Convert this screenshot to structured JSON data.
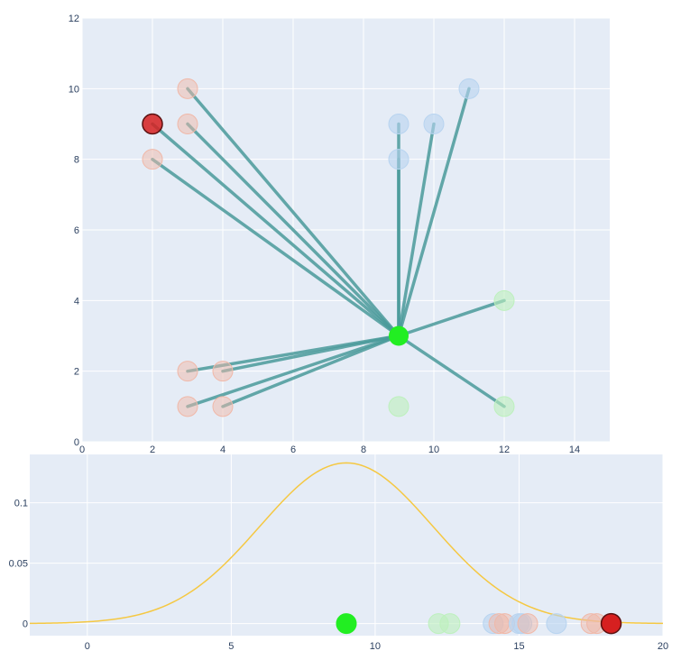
{
  "chart_data": [
    {
      "type": "scatter",
      "title": "",
      "xlabel": "",
      "ylabel": "",
      "xlim": [
        0,
        15
      ],
      "ylim": [
        0,
        12
      ],
      "xticks": [
        "0",
        "2",
        "4",
        "6",
        "8",
        "10",
        "12",
        "14"
      ],
      "yticks": [
        "0",
        "2",
        "4",
        "6",
        "8",
        "10",
        "12"
      ],
      "grid": true,
      "background": "#e5ecf6",
      "line_color": "#4a9a9a",
      "center": {
        "x": 9,
        "y": 3,
        "color": "#22ee22"
      },
      "points": [
        {
          "x": 2,
          "y": 9,
          "color": "#d62020",
          "opacity": 0.85,
          "connected": true
        },
        {
          "x": 2,
          "y": 8,
          "color": "#f0b8a8",
          "opacity": 0.5,
          "connected": true
        },
        {
          "x": 3,
          "y": 10,
          "color": "#f0b8a8",
          "opacity": 0.5,
          "connected": true
        },
        {
          "x": 3,
          "y": 9,
          "color": "#f0b8a8",
          "opacity": 0.5,
          "connected": true
        },
        {
          "x": 3,
          "y": 2,
          "color": "#f0b8a8",
          "opacity": 0.5,
          "connected": true
        },
        {
          "x": 4,
          "y": 2,
          "color": "#f0b8a8",
          "opacity": 0.5,
          "connected": true
        },
        {
          "x": 3,
          "y": 1,
          "color": "#f0b8a8",
          "opacity": 0.5,
          "connected": true
        },
        {
          "x": 4,
          "y": 1,
          "color": "#f0b8a8",
          "opacity": 0.5,
          "connected": true
        },
        {
          "x": 9,
          "y": 9,
          "color": "#b8d4f0",
          "opacity": 0.6,
          "connected": true
        },
        {
          "x": 9,
          "y": 8,
          "color": "#b8d4f0",
          "opacity": 0.6,
          "connected": true
        },
        {
          "x": 10,
          "y": 9,
          "color": "#b8d4f0",
          "opacity": 0.6,
          "connected": true
        },
        {
          "x": 11,
          "y": 10,
          "color": "#b8d4f0",
          "opacity": 0.6,
          "connected": true
        },
        {
          "x": 12,
          "y": 4,
          "color": "#bdf0bd",
          "opacity": 0.6,
          "connected": true
        },
        {
          "x": 12,
          "y": 1,
          "color": "#bdf0bd",
          "opacity": 0.6,
          "connected": true
        },
        {
          "x": 9,
          "y": 1,
          "color": "#bdf0bd",
          "opacity": 0.6,
          "connected": false
        }
      ]
    },
    {
      "type": "line",
      "title": "",
      "xlabel": "",
      "ylabel": "",
      "xlim": [
        -2,
        20
      ],
      "ylim": [
        -0.01,
        0.14
      ],
      "xticks": [
        "0",
        "5",
        "10",
        "15",
        "20"
      ],
      "yticks": [
        "0",
        "0.05",
        "0.1"
      ],
      "grid": true,
      "background": "#e5ecf6",
      "curve": {
        "type": "normal-pdf",
        "mean": 9,
        "sd": 3,
        "color": "#f5c842"
      },
      "points": [
        {
          "x": 9.0,
          "color": "#22ee22",
          "opacity": 1.0
        },
        {
          "x": 12.2,
          "color": "#bdf0bd",
          "opacity": 0.6
        },
        {
          "x": 12.6,
          "color": "#bdf0bd",
          "opacity": 0.6
        },
        {
          "x": 14.1,
          "color": "#b8d4f0",
          "opacity": 0.6
        },
        {
          "x": 14.3,
          "color": "#f0b8a8",
          "opacity": 0.5
        },
        {
          "x": 14.5,
          "color": "#f0b8a8",
          "opacity": 0.5
        },
        {
          "x": 15.0,
          "color": "#b8d4f0",
          "opacity": 0.6
        },
        {
          "x": 15.1,
          "color": "#b8d4f0",
          "opacity": 0.6
        },
        {
          "x": 15.3,
          "color": "#f0b8a8",
          "opacity": 0.5
        },
        {
          "x": 16.3,
          "color": "#b8d4f0",
          "opacity": 0.6
        },
        {
          "x": 17.5,
          "color": "#f0b8a8",
          "opacity": 0.5
        },
        {
          "x": 17.7,
          "color": "#f0b8a8",
          "opacity": 0.5
        },
        {
          "x": 18.2,
          "color": "#d62020",
          "opacity": 1.0
        }
      ]
    }
  ]
}
